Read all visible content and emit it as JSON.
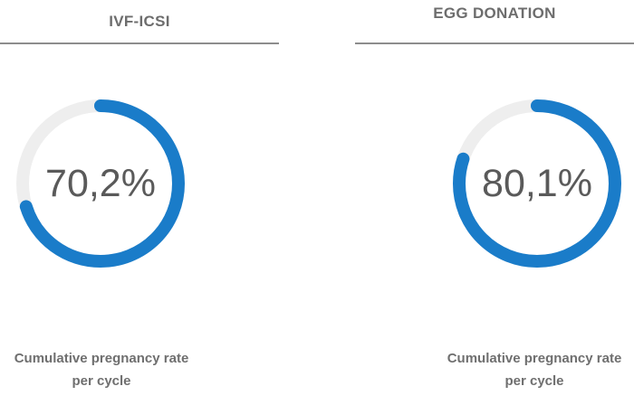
{
  "colors": {
    "accent": "#1a7cc9",
    "track": "#eeeeee",
    "text": "#6d6d6d",
    "divider": "#8d8d8d"
  },
  "stats": [
    {
      "title": "IVF-ICSI",
      "value_text": "70,2%",
      "fraction": 0.702,
      "caption_line1": "Cumulative pregnancy rate",
      "caption_line2": "per cycle"
    },
    {
      "title": "EGG DONATION",
      "value_text": "80,1%",
      "fraction": 0.801,
      "caption_line1": "Cumulative pregnancy rate",
      "caption_line2": "per cycle"
    }
  ]
}
